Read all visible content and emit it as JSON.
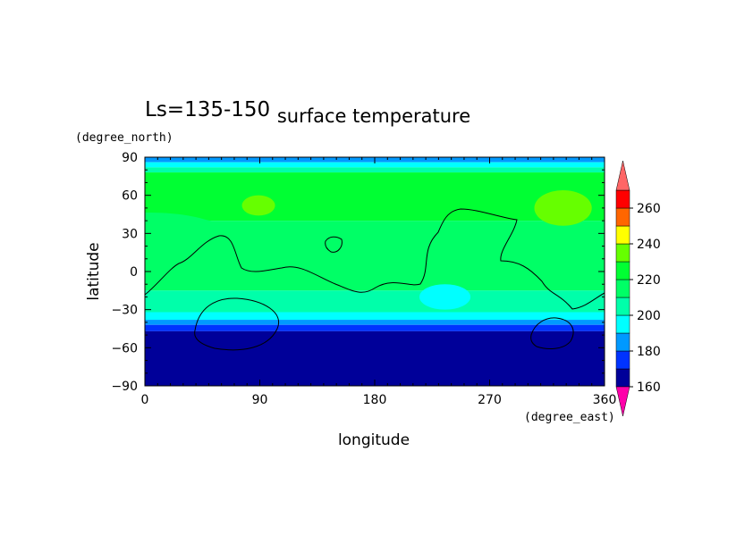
{
  "figure": {
    "season_label": "Ls=135-150",
    "title": "surface temperature"
  },
  "chart_data": {
    "type": "heatmap",
    "title": "surface temperature",
    "xlabel": "longitude",
    "ylabel": "latitude",
    "x_units": "(degree_east)",
    "y_units": "(degree_north)",
    "xlim": [
      0,
      360
    ],
    "ylim": [
      -90,
      90
    ],
    "x_ticks": [
      0,
      90,
      180,
      270,
      360
    ],
    "y_ticks": [
      90,
      60,
      30,
      0,
      -30,
      -60,
      -90
    ],
    "colorbar": {
      "levels": [
        160,
        170,
        180,
        190,
        200,
        210,
        220,
        230,
        240,
        250,
        260,
        270
      ],
      "tick_labels": [
        160,
        180,
        200,
        220,
        240,
        260
      ],
      "colors": [
        "#ff00aa",
        "#000099",
        "#0033ff",
        "#0099ff",
        "#00ffff",
        "#00ffaa",
        "#00ff66",
        "#00ff33",
        "#66ff00",
        "#ffff00",
        "#ff6600",
        "#ff0000",
        "#ff6666"
      ],
      "extend": "both"
    },
    "bands": [
      {
        "lat_top": 90,
        "lat_bottom": 86,
        "level": 180
      },
      {
        "lat_top": 86,
        "lat_bottom": 82,
        "level": 190
      },
      {
        "lat_top": 82,
        "lat_bottom": 78,
        "level": 200
      },
      {
        "lat_top": 78,
        "lat_bottom": 40,
        "level": 220
      },
      {
        "lat_top": 40,
        "lat_bottom": -15,
        "level": 210
      },
      {
        "lat_top": -15,
        "lat_bottom": -32,
        "level": 200
      },
      {
        "lat_top": -32,
        "lat_bottom": -38,
        "level": 190
      },
      {
        "lat_top": -38,
        "lat_bottom": -42,
        "level": 180
      },
      {
        "lat_top": -42,
        "lat_bottom": -47,
        "level": 170
      },
      {
        "lat_top": -47,
        "lat_bottom": -90,
        "level": 160
      }
    ],
    "warm_patches": [
      {
        "lon": [
          76,
          102
        ],
        "lat": [
          44,
          60
        ],
        "level": 230
      },
      {
        "lon": [
          305,
          350
        ],
        "lat": [
          36,
          64
        ],
        "level": 230
      }
    ],
    "cool_patches": [
      {
        "lon": [
          215,
          255
        ],
        "lat": [
          -30,
          -10
        ],
        "level": 190
      }
    ]
  }
}
